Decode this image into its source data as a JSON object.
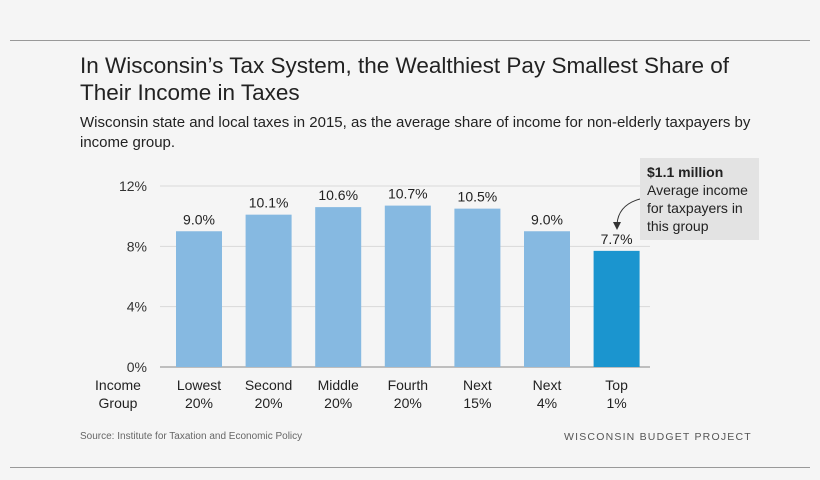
{
  "title": "In Wisconsin’s Tax System, the Wealthiest Pay Smallest Share of Their Income in Taxes",
  "subtitle": "Wisconsin state and local taxes in 2015, as the average share of income for non-elderly taxpayers by income group.",
  "source": "Source: Institute for Taxation and Economic Policy",
  "brand": "WISCONSIN BUDGET PROJECT",
  "annotation": {
    "headline": "$1.1 million",
    "text": "Average income for taxpayers in this group"
  },
  "colors": {
    "bar": "#86b9e1",
    "highlight": "#1b95cf",
    "grid": "#d9d9d9"
  },
  "chart_data": {
    "type": "bar",
    "title": "In Wisconsin’s Tax System, the Wealthiest Pay Smallest Share of Their Income in Taxes",
    "xlabel": [
      "Income",
      "Group"
    ],
    "ylabel": "",
    "categories": [
      [
        "Lowest",
        "20%"
      ],
      [
        "Second",
        "20%"
      ],
      [
        "Middle",
        "20%"
      ],
      [
        "Fourth",
        "20%"
      ],
      [
        "Next",
        "15%"
      ],
      [
        "Next",
        "4%"
      ],
      [
        "Top",
        "1%"
      ]
    ],
    "values": [
      9.0,
      10.1,
      10.6,
      10.7,
      10.5,
      9.0,
      7.7
    ],
    "data_labels": [
      "9.0%",
      "10.1%",
      "10.6%",
      "10.7%",
      "10.5%",
      "9.0%",
      "7.7%"
    ],
    "highlight_index": 6,
    "ylim": [
      0,
      12
    ],
    "yticks": [
      0,
      4,
      8,
      12
    ],
    "ytick_labels": [
      "0%",
      "4%",
      "8%",
      "12%"
    ],
    "grid": true
  }
}
